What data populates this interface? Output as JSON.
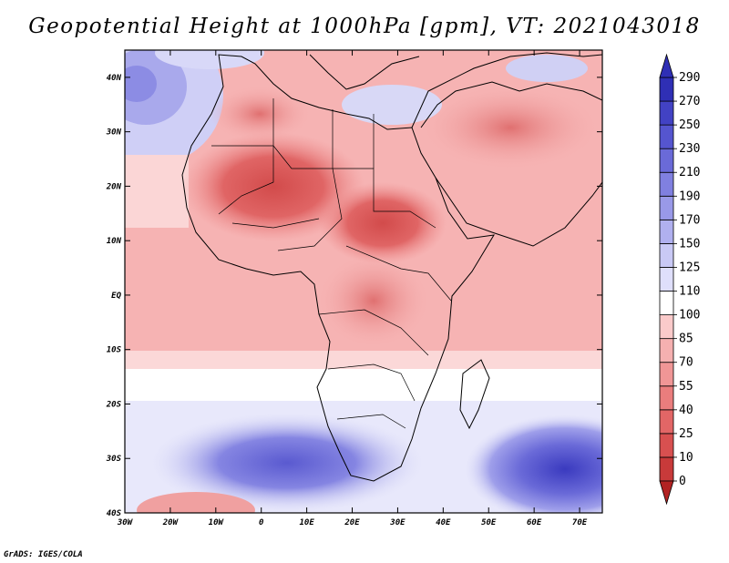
{
  "title": "Geopotential Height at 1000hPa [gpm], VT: 2021043018",
  "credit": "GrADS: IGES/COLA",
  "map": {
    "lon_range": [
      -30,
      75
    ],
    "lat_range": [
      -40,
      45
    ],
    "lon_labels": [
      "30W",
      "20W",
      "10W",
      "0",
      "10E",
      "20E",
      "30E",
      "40E",
      "50E",
      "60E",
      "70E"
    ],
    "lat_labels": [
      "40S",
      "30S",
      "20S",
      "10S",
      "EQ",
      "10N",
      "20N",
      "30N",
      "40N"
    ]
  },
  "colorbar": {
    "levels": [
      "0",
      "10",
      "25",
      "40",
      "55",
      "70",
      "85",
      "100",
      "110",
      "125",
      "150",
      "170",
      "190",
      "210",
      "230",
      "250",
      "270",
      "290"
    ],
    "colors": [
      "#b22222",
      "#c83a3a",
      "#d85050",
      "#e26666",
      "#ea7d7d",
      "#f09696",
      "#f5b0b0",
      "#facaca",
      "#ffffff",
      "#dfdffb",
      "#c9c9f5",
      "#b0b0ef",
      "#9999e8",
      "#8080e0",
      "#6a6ad8",
      "#5555cf",
      "#4242c4",
      "#2f2fb5"
    ]
  }
}
